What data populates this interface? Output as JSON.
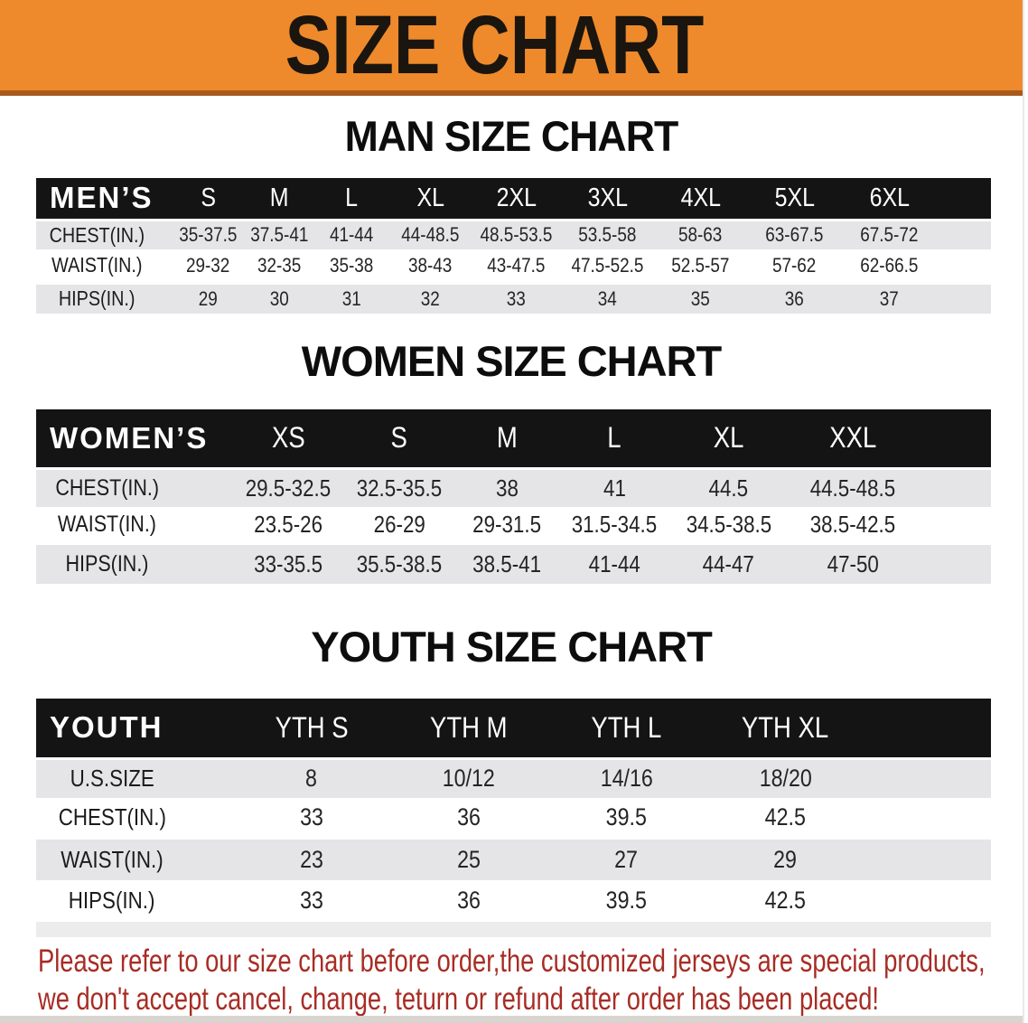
{
  "banner": {
    "title": "SIZE CHART",
    "bg_color": "#ee8a2b",
    "text_color": "#1a150f"
  },
  "sections": [
    {
      "heading": "MAN SIZE CHART",
      "table": {
        "name": "mens",
        "label": "MEN’S",
        "sizes": [
          "S",
          "M",
          "L",
          "XL",
          "2XL",
          "3XL",
          "4XL",
          "5XL",
          "6XL"
        ],
        "rows": [
          {
            "label": "CHEST(IN.)",
            "values": [
              "35-37.5",
              "37.5-41",
              "41-44",
              "44-48.5",
              "48.5-53.5",
              "53.5-58",
              "58-63",
              "63-67.5",
              "67.5-72"
            ]
          },
          {
            "label": "WAIST(IN.)",
            "values": [
              "29-32",
              "32-35",
              "35-38",
              "38-43",
              "43-47.5",
              "47.5-52.5",
              "52.5-57",
              "57-62",
              "62-66.5"
            ]
          },
          {
            "label": "HIPS(IN.)",
            "values": [
              "29",
              "30",
              "31",
              "32",
              "33",
              "34",
              "35",
              "36",
              "37"
            ]
          }
        ]
      }
    },
    {
      "heading": "WOMEN SIZE CHART",
      "table": {
        "name": "womens",
        "label": "WOMEN’S",
        "sizes": [
          "XS",
          "S",
          "M",
          "L",
          "XL",
          "XXL"
        ],
        "rows": [
          {
            "label": "CHEST(IN.)",
            "values": [
              "29.5-32.5",
              "32.5-35.5",
              "38",
              "41",
              "44.5",
              "44.5-48.5"
            ]
          },
          {
            "label": "WAIST(IN.)",
            "values": [
              "23.5-26",
              "26-29",
              "29-31.5",
              "31.5-34.5",
              "34.5-38.5",
              "38.5-42.5"
            ]
          },
          {
            "label": "HIPS(IN.)",
            "values": [
              "33-35.5",
              "35.5-38.5",
              "38.5-41",
              "41-44",
              "44-47",
              "47-50"
            ]
          }
        ]
      }
    },
    {
      "heading": "YOUTH SIZE CHART",
      "table": {
        "name": "youth",
        "label": "YOUTH",
        "sizes": [
          "YTH S",
          "YTH M",
          "YTH L",
          "YTH XL"
        ],
        "rows": [
          {
            "label": "U.S.SIZE",
            "values": [
              "8",
              "10/12",
              "14/16",
              "18/20"
            ]
          },
          {
            "label": "CHEST(IN.)",
            "values": [
              "33",
              "36",
              "39.5",
              "42.5"
            ]
          },
          {
            "label": "WAIST(IN.)",
            "values": [
              "23",
              "25",
              "27",
              "29"
            ]
          },
          {
            "label": "HIPS(IN.)",
            "values": [
              "33",
              "36",
              "39.5",
              "42.5"
            ]
          }
        ]
      }
    }
  ],
  "disclaimer": {
    "line1": "Please refer to our size chart before order,the customized jerseys are special products,",
    "line2": "we don't accept cancel, change, teturn or refund after order has been placed!",
    "color": "#a82c24"
  }
}
